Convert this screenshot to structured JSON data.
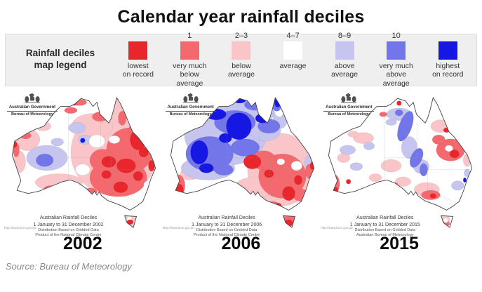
{
  "title": "Calendar year rainfall deciles",
  "legend": {
    "heading_line1": "Rainfall deciles",
    "heading_line2": "map legend",
    "items": [
      {
        "decile": "",
        "label_line1": "lowest",
        "label_line2": "on record",
        "color": "#e9262b"
      },
      {
        "decile": "1",
        "label_line1": "very much below",
        "label_line2": "average",
        "color": "#f4696d"
      },
      {
        "decile": "2–3",
        "label_line1": "below",
        "label_line2": "average",
        "color": "#f9c5c8"
      },
      {
        "decile": "4–7",
        "label_line1": "average",
        "label_line2": "",
        "color": "#ffffff"
      },
      {
        "decile": "8–9",
        "label_line1": "above",
        "label_line2": "average",
        "color": "#c5c5ef"
      },
      {
        "decile": "10",
        "label_line1": "very much above",
        "label_line2": "average",
        "color": "#7376e8"
      },
      {
        "decile": "",
        "label_line1": "highest",
        "label_line2": "on record",
        "color": "#1617e3"
      }
    ]
  },
  "logo": {
    "line1": "Australian Government",
    "line2": "Bureau of Meteorology"
  },
  "maps": [
    {
      "year": "2002",
      "caption": [
        "Australian Rainfall Deciles",
        "1 January to 31 December 2002",
        "Distribution Based on Gridded Data",
        "Product of the National Climate Centre"
      ],
      "watermark": "http://www.bom.gov.au"
    },
    {
      "year": "2006",
      "caption": [
        "Australian Rainfall Deciles",
        "1 January to 31 December 2006",
        "Distribution Based on Gridded Data",
        "Product of the National Climate Centre"
      ],
      "watermark": "http://www.bom.gov.au"
    },
    {
      "year": "2015",
      "caption": [
        "Australian Rainfall Deciles",
        "1 January to 31 December 2015",
        "Distribution Based on Gridded Data",
        "Australian Bureau of Meteorology"
      ],
      "watermark": "http://www.bom.gov.au"
    }
  ],
  "source": "Source: Bureau of Meteorology"
}
